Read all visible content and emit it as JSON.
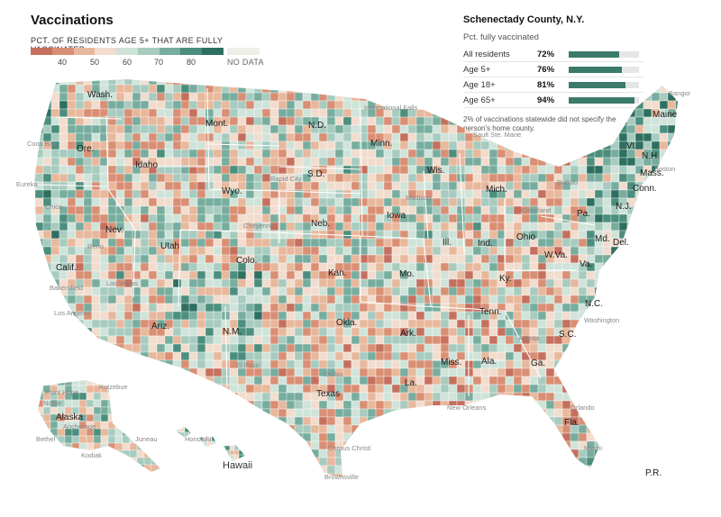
{
  "title": "Vaccinations",
  "legend": {
    "caption": "PCT. OF RESIDENTS AGE 5+ THAT ARE FULLY VACCINATED",
    "ticks": [
      "40",
      "50",
      "60",
      "70",
      "80"
    ],
    "no_data_label": "NO DATA",
    "colors": [
      "#c5705e",
      "#d98f74",
      "#e8b89c",
      "#f1dccd",
      "#cfe3d9",
      "#a7cbbf",
      "#77ad9e",
      "#4b8e7d",
      "#2d6f60"
    ]
  },
  "county_panel": {
    "title": "Schenectady County, N.Y.",
    "subtitle": "Pct. fully vaccinated",
    "rows": [
      {
        "label": "All residents",
        "value_text": "72%",
        "value": 72
      },
      {
        "label": "Age 5+",
        "value_text": "76%",
        "value": 76
      },
      {
        "label": "Age 18+",
        "value_text": "81%",
        "value": 81
      },
      {
        "label": "Age 65+",
        "value_text": "94%",
        "value": 94
      }
    ],
    "note": "2% of vaccinations statewide did not specify the person's home county."
  },
  "map": {
    "state_labels": [
      "Wash.",
      "Ore.",
      "Idaho",
      "Mont.",
      "N.D.",
      "Minn.",
      "Wis.",
      "Mich.",
      "Maine",
      "Vt.",
      "N.H.",
      "Mass.",
      "Conn.",
      "N.J.",
      "Del.",
      "Md.",
      "Pa.",
      "Ohio",
      "Ind.",
      "Ill.",
      "Iowa",
      "Neb.",
      "S.D.",
      "Wyo.",
      "Nev.",
      "Calif.",
      "Utah",
      "Colo.",
      "Kan.",
      "Mo.",
      "Ky.",
      "W.Va.",
      "Va.",
      "N.C.",
      "Tenn.",
      "Ark.",
      "Okla.",
      "Ariz.",
      "N.M.",
      "Texas",
      "La.",
      "Miss.",
      "Ala.",
      "Ga.",
      "S.C.",
      "Fla.",
      "Alaska",
      "Hawaii",
      "P.R."
    ],
    "city_labels": [
      "International Falls",
      "Sault Ste. Marie",
      "Coos Bay",
      "Eureka",
      "Chico",
      "Reno",
      "Bakersfield",
      "Los Angeles",
      "Las Vegas",
      "Cheyenne",
      "Rapid City",
      "Madison",
      "Cleveland",
      "Buffalo",
      "Boston",
      "Bangor",
      "Washington",
      "Atlanta",
      "El Paso",
      "Corpus Christi",
      "Brownsville",
      "Orlando",
      "Miami",
      "New Orleans",
      "Dallas",
      "Nome",
      "Anchorage",
      "Juneau",
      "Honolulu",
      "Bethel",
      "Point Hope",
      "Kotzebue",
      "Kodiak"
    ]
  }
}
